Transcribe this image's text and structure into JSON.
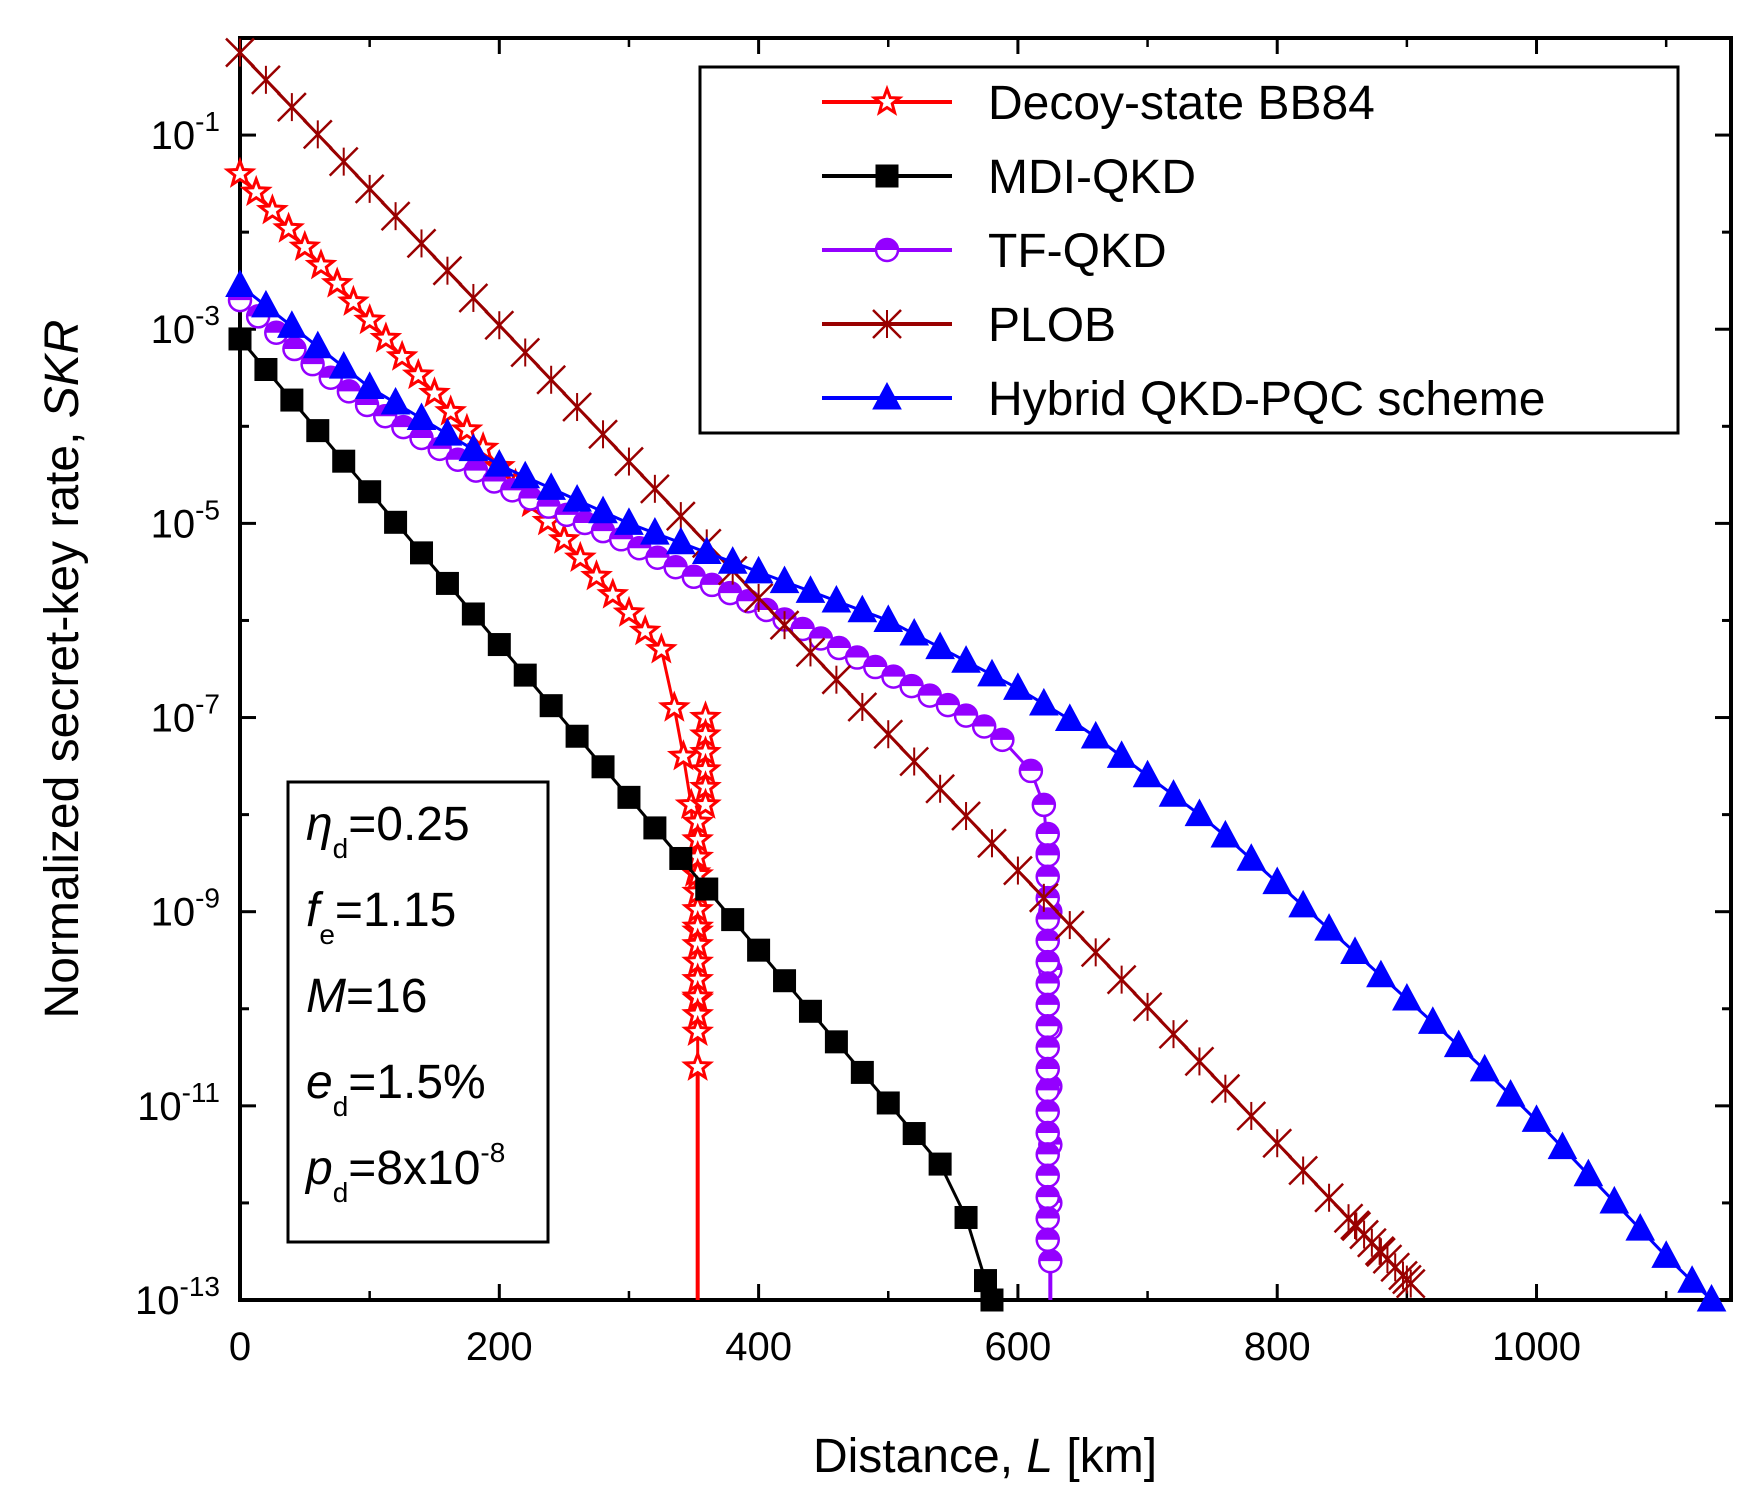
{
  "chart_data": {
    "type": "line",
    "title": "",
    "xlabel_prefix": "Distance, ",
    "xlabel_var": "L",
    "xlabel_unit": " [km]",
    "ylabel_prefix": "Normalized secret-key rate, ",
    "ylabel_var": "SKR",
    "xlim": [
      0,
      1150
    ],
    "ylim_log10": [
      -13,
      0
    ],
    "y_scale": "log",
    "x_ticks": [
      0,
      200,
      400,
      600,
      800,
      1000
    ],
    "x_tick_labels": [
      "0",
      "200",
      "400",
      "600",
      "800",
      "1000"
    ],
    "y_major_exponents": [
      -13,
      -11,
      -9,
      -7,
      -5,
      -3,
      -1
    ],
    "y_tick_base": "10",
    "y_tick_exps": [
      "-13",
      "-11",
      "-9",
      "-7",
      "-5",
      "-3",
      "-1"
    ],
    "legend_position": "top-right",
    "series": [
      {
        "name": "Decoy-state BB84",
        "color": "#ff0000",
        "marker": "star",
        "marker_fill": "#ffffff",
        "x_start": 0,
        "x_end": 325,
        "x_step": 12.5,
        "log10_start": -1.4,
        "log10_end": -6.3,
        "tail_curve": [
          [
            325,
            -6.3
          ],
          [
            335,
            -6.9
          ],
          [
            342,
            -7.4
          ],
          [
            348,
            -7.9
          ],
          [
            351,
            -8.6
          ],
          [
            353,
            -9.2
          ],
          [
            353,
            -9.9
          ],
          [
            353,
            -10.6
          ]
        ],
        "cutoff_x": 353,
        "cutoff_line_label": "vertical drop"
      },
      {
        "name": "MDI-QKD",
        "color": "#000000",
        "marker": "square",
        "marker_fill": "#000000",
        "x_start": 0,
        "x_end": 540,
        "x_step": 20,
        "log10_start": -3.1,
        "log10_end": -11.6,
        "tail_curve": [
          [
            540,
            -11.6
          ],
          [
            560,
            -12.15
          ],
          [
            575,
            -12.8
          ],
          [
            580,
            -13.0
          ]
        ]
      },
      {
        "name": "TF-QKD",
        "color": "#9400ff",
        "marker": "half-circle",
        "marker_fill": "#ffffff",
        "main_curve": [
          [
            0,
            -2.7
          ],
          [
            50,
            -3.3
          ],
          [
            100,
            -3.8
          ],
          [
            150,
            -4.2
          ],
          [
            200,
            -4.6
          ],
          [
            250,
            -4.9
          ],
          [
            300,
            -5.2
          ],
          [
            350,
            -5.55
          ],
          [
            400,
            -5.85
          ],
          [
            450,
            -6.2
          ],
          [
            500,
            -6.55
          ],
          [
            550,
            -6.9
          ],
          [
            575,
            -7.1
          ],
          [
            595,
            -7.3
          ],
          [
            610,
            -7.55
          ],
          [
            620,
            -7.9
          ],
          [
            623,
            -8.4
          ],
          [
            625,
            -9.0
          ],
          [
            625,
            -9.6
          ],
          [
            625,
            -10.2
          ],
          [
            625,
            -10.8
          ],
          [
            625,
            -11.4
          ],
          [
            625,
            -12.0
          ],
          [
            625,
            -12.6
          ]
        ],
        "cutoff_x": 625
      },
      {
        "name": "PLOB",
        "color": "#990000",
        "marker": "asterisk",
        "marker_fill": "#ffffff",
        "x_start": 0,
        "x_end": 915,
        "x_step": 20,
        "log10_start": -0.15,
        "log10_end": -13.0
      },
      {
        "name": "Hybrid QKD-PQC scheme",
        "color": "#0000ff",
        "marker": "triangle",
        "marker_fill": "#0000ff",
        "main_curve": [
          [
            0,
            -2.55
          ],
          [
            100,
            -3.6
          ],
          [
            200,
            -4.4
          ],
          [
            300,
            -5.0
          ],
          [
            400,
            -5.5
          ],
          [
            500,
            -6.0
          ],
          [
            600,
            -6.7
          ],
          [
            650,
            -7.1
          ],
          [
            700,
            -7.6
          ],
          [
            750,
            -8.1
          ],
          [
            800,
            -8.7
          ],
          [
            850,
            -9.3
          ],
          [
            900,
            -9.9
          ],
          [
            950,
            -10.5
          ],
          [
            1000,
            -11.15
          ],
          [
            1050,
            -11.85
          ],
          [
            1100,
            -12.55
          ],
          [
            1135,
            -13.0
          ]
        ],
        "x_step": 20
      }
    ],
    "parameters": [
      {
        "sym": "η",
        "sub": "d",
        "value": "=0.25"
      },
      {
        "sym": "f",
        "sub": "e",
        "value": "=1.15"
      },
      {
        "sym": "M",
        "sub": "",
        "value": "=16"
      },
      {
        "sym": "e",
        "sub": "d",
        "value": "=1.5%"
      },
      {
        "sym": "p",
        "sub": "d",
        "value": "=8x10",
        "sup": "-8"
      }
    ]
  }
}
